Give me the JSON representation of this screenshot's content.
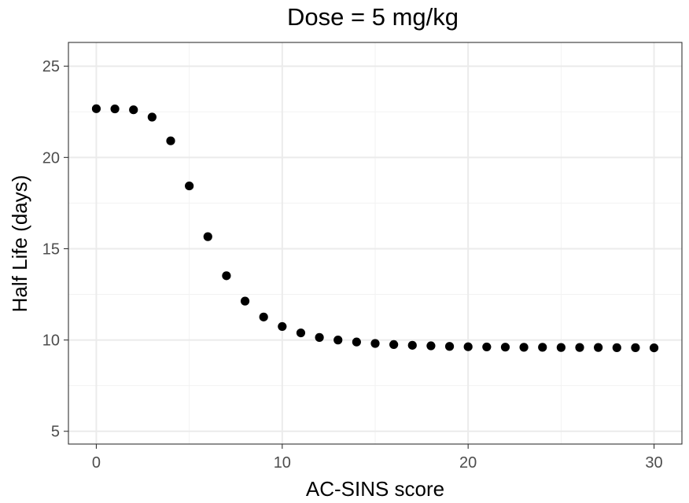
{
  "chart_data": {
    "type": "scatter",
    "title": "Dose = 5 mg/kg",
    "xlabel": "AC-SINS score",
    "ylabel": "Half Life (days)",
    "xlim": [
      -1.5,
      31.5
    ],
    "ylim": [
      4.3,
      26.3
    ],
    "xticks": [
      0,
      10,
      20,
      30
    ],
    "yticks": [
      5,
      10,
      15,
      20,
      25
    ],
    "x_minor_grid": [
      5,
      15,
      25
    ],
    "y_minor_grid": [
      7.5,
      12.5,
      17.5,
      22.5
    ],
    "grid": true,
    "legend": "none",
    "series": [
      {
        "color": "#000000",
        "x": [
          0,
          1,
          2,
          3,
          4,
          5,
          6,
          7,
          8,
          9,
          10,
          11,
          12,
          13,
          14,
          15,
          16,
          17,
          18,
          19,
          20,
          21,
          22,
          23,
          24,
          25,
          26,
          27,
          28,
          29,
          30
        ],
        "y": [
          22.67,
          22.66,
          22.61,
          22.21,
          20.91,
          18.44,
          15.66,
          13.52,
          12.13,
          11.26,
          10.74,
          10.39,
          10.14,
          10.0,
          9.89,
          9.81,
          9.75,
          9.71,
          9.68,
          9.65,
          9.63,
          9.62,
          9.61,
          9.6,
          9.6,
          9.59,
          9.59,
          9.59,
          9.58,
          9.58,
          9.57
        ]
      }
    ]
  }
}
